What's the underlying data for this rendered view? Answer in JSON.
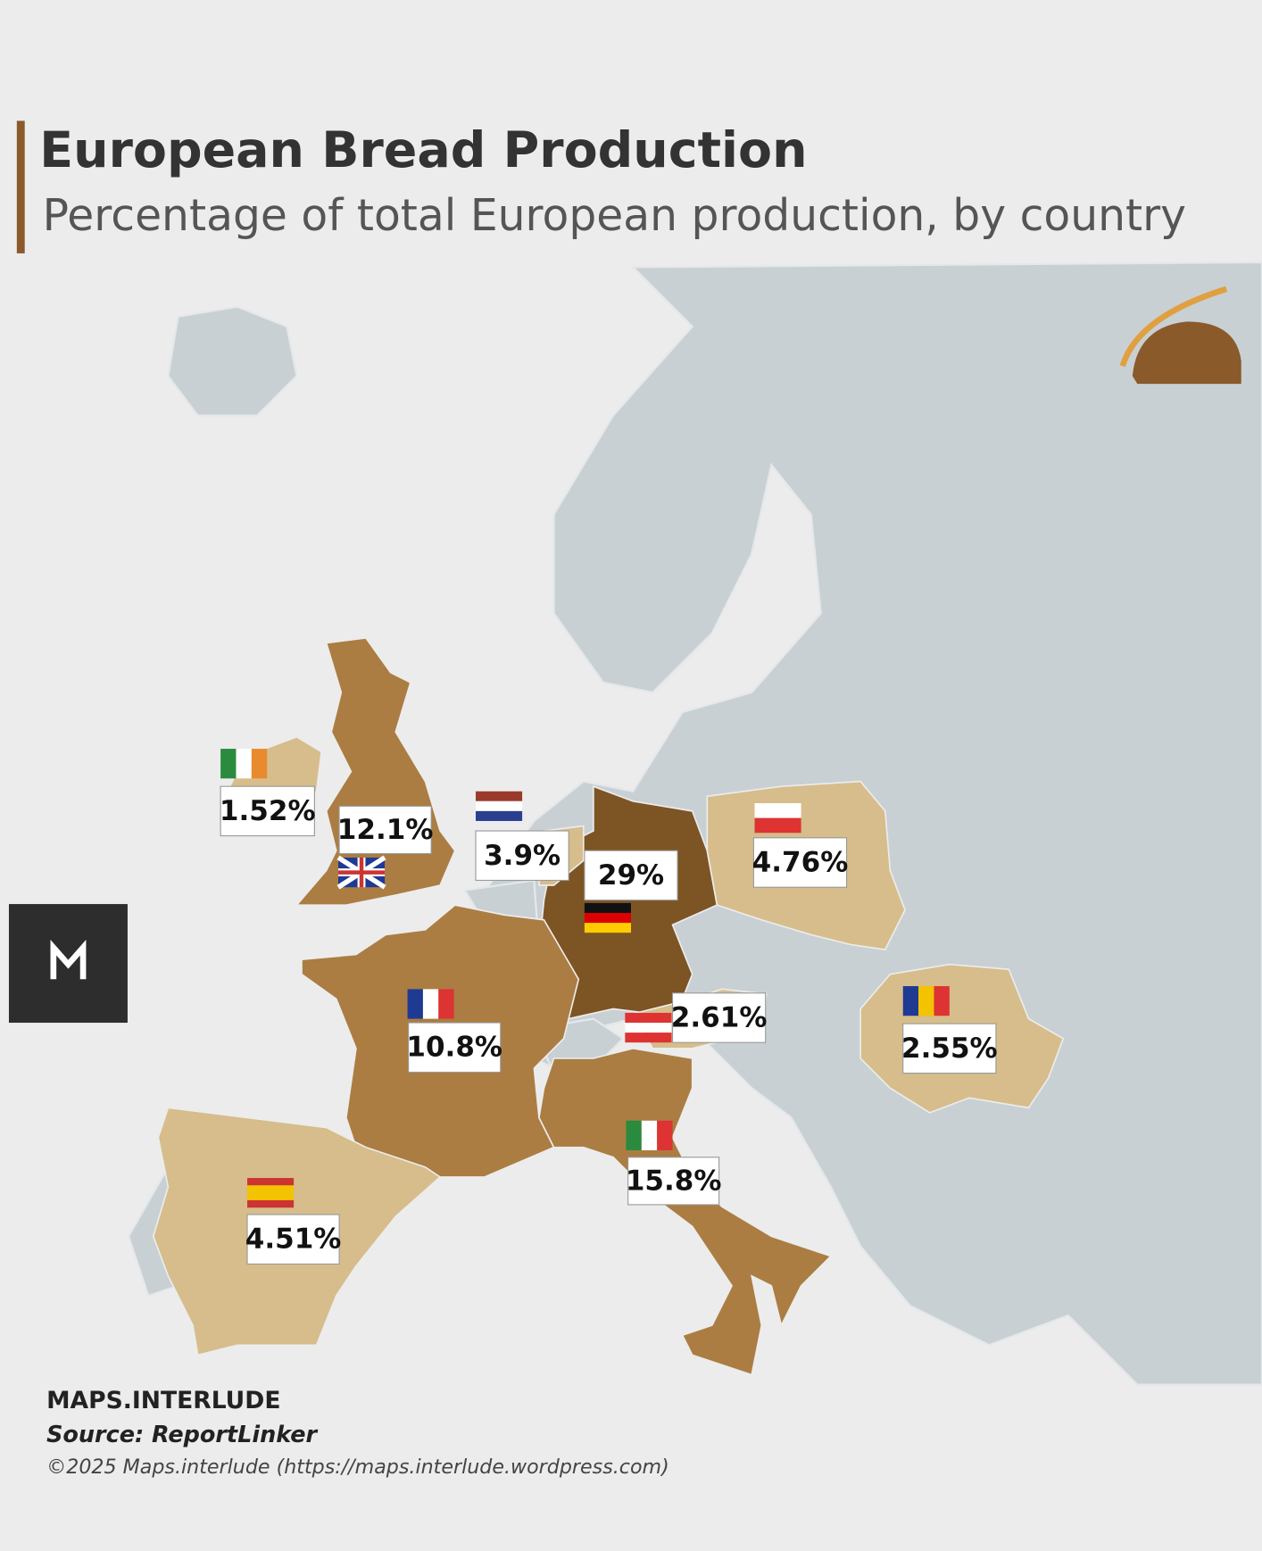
{
  "chart_data": {
    "type": "map",
    "title": "European Bread Production",
    "subtitle": "Percentage of total European production, by country",
    "values": [
      29,
      12.1,
      10.8,
      15.8,
      4.76,
      4.51,
      3.9,
      2.61,
      2.55,
      1.52
    ],
    "value_labels": [
      "29%",
      "12.1%",
      "10.8%",
      "15.8%",
      "4.76%",
      "4.51%",
      "3.9%",
      "2.61%",
      "2.55%",
      "1.52%"
    ],
    "colors": [
      "#7d5424",
      "#ab7d42",
      "#ab7d42",
      "#ab7d42",
      "#d6bd8b",
      "#d6bd8b",
      "#d6bd8b",
      "#d6bd8b",
      "#d6bd8b",
      "#d6bd8b"
    ],
    "brand": "MAPS.INTERLUDE",
    "source": "Source: ReportLinker",
    "copyright": "©2025 Maps.interlude (https://maps.interlude.wordpress.com)"
  }
}
